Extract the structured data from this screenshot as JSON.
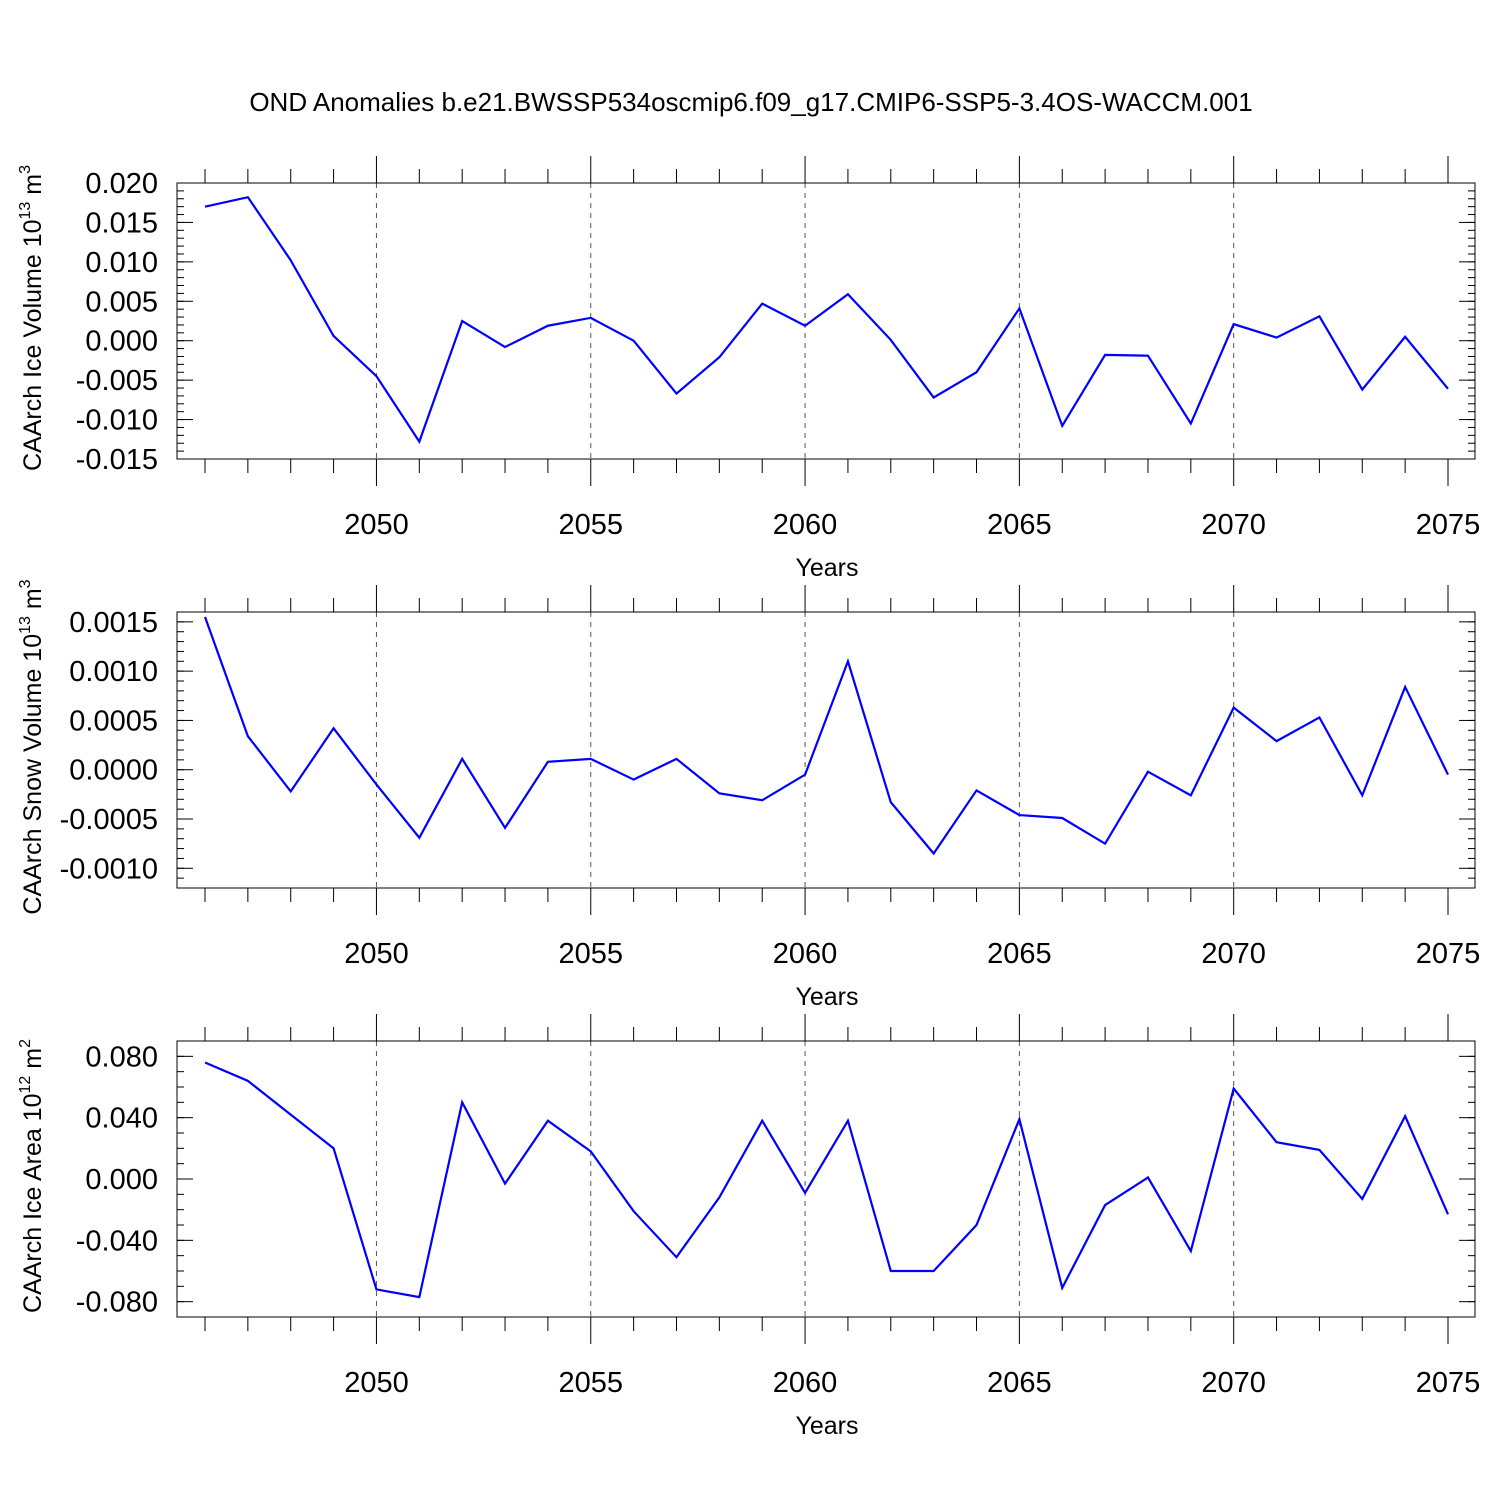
{
  "title": "OND Anomalies b.e21.BWSSP534oscmip6.f09_g17.CMIP6-SSP5-3.4OS-WACCM.001",
  "colors": {
    "line": "#0000ff",
    "axis": "#000000",
    "grid": "#555555"
  },
  "chart_data": [
    {
      "type": "line",
      "ylabel": "CAArch Ice Volume 10",
      "ylabel_exp": "13",
      "ylabel_unit": "m",
      "ylabel_unit_exp": "3",
      "xlabel": "Years",
      "xlim": [
        2046,
        2075
      ],
      "ylim": [
        -0.015,
        0.02
      ],
      "yticks": [
        0.02,
        0.015,
        0.01,
        0.005,
        0.0,
        -0.005,
        -0.01,
        -0.015
      ],
      "ytick_labels": [
        "0.020",
        "0.015",
        "0.010",
        "0.005",
        "0.000",
        "-0.005",
        "-0.010",
        "-0.015"
      ],
      "yminor_step": 0.001,
      "xticks": [
        2050,
        2055,
        2060,
        2065,
        2070,
        2075
      ],
      "xtick_labels": [
        "2050",
        "2055",
        "2060",
        "2065",
        "2070",
        "2075"
      ],
      "x": [
        2046,
        2047,
        2048,
        2049,
        2050,
        2051,
        2052,
        2053,
        2054,
        2055,
        2056,
        2057,
        2058,
        2059,
        2060,
        2061,
        2062,
        2063,
        2064,
        2065,
        2066,
        2067,
        2068,
        2069,
        2070,
        2071,
        2072,
        2073,
        2074,
        2075
      ],
      "series": [
        {
          "name": "CAArch Ice Volume",
          "values": [
            0.017,
            0.0182,
            0.0102,
            0.0006,
            -0.0045,
            -0.0128,
            0.0025,
            -0.0008,
            0.0019,
            0.0029,
            0.0,
            -0.0067,
            -0.0021,
            0.0047,
            0.0019,
            0.0059,
            0.0001,
            -0.0072,
            -0.004,
            0.0041,
            -0.0108,
            -0.0018,
            -0.0019,
            -0.0105,
            0.0021,
            0.0004,
            0.0031,
            -0.0062,
            0.0005,
            -0.0061
          ]
        }
      ]
    },
    {
      "type": "line",
      "ylabel": "CAArch Snow Volume 10",
      "ylabel_exp": "13",
      "ylabel_unit": "m",
      "ylabel_unit_exp": "3",
      "xlabel": "Years",
      "xlim": [
        2046,
        2075
      ],
      "ylim": [
        -0.0012,
        0.0016
      ],
      "yticks": [
        0.0015,
        0.001,
        0.0005,
        0.0,
        -0.0005,
        -0.001
      ],
      "ytick_labels": [
        "0.0015",
        "0.0010",
        "0.0005",
        "0.0000",
        "-0.0005",
        "-0.0010"
      ],
      "yminor_step": 0.0001,
      "xticks": [
        2050,
        2055,
        2060,
        2065,
        2070,
        2075
      ],
      "xtick_labels": [
        "2050",
        "2055",
        "2060",
        "2065",
        "2070",
        "2075"
      ],
      "x": [
        2046,
        2047,
        2048,
        2049,
        2050,
        2051,
        2052,
        2053,
        2054,
        2055,
        2056,
        2057,
        2058,
        2059,
        2060,
        2061,
        2062,
        2063,
        2064,
        2065,
        2066,
        2067,
        2068,
        2069,
        2070,
        2071,
        2072,
        2073,
        2074,
        2075
      ],
      "series": [
        {
          "name": "CAArch Snow Volume",
          "values": [
            0.00155,
            0.00034,
            -0.00022,
            0.00042,
            -0.00015,
            -0.00069,
            0.00011,
            -0.00059,
            8e-05,
            0.00011,
            -0.0001,
            0.00011,
            -0.00024,
            -0.00031,
            -5e-05,
            0.0011,
            -0.00033,
            -0.00085,
            -0.00021,
            -0.00046,
            -0.00049,
            -0.00075,
            -2e-05,
            -0.00026,
            0.00063,
            0.00029,
            0.00053,
            -0.00026,
            0.00084,
            -5e-05
          ]
        }
      ]
    },
    {
      "type": "line",
      "ylabel": "CAArch Ice Area 10",
      "ylabel_exp": "12",
      "ylabel_unit": "m",
      "ylabel_unit_exp": "2",
      "xlabel": "Years",
      "xlim": [
        2046,
        2075
      ],
      "ylim": [
        -0.09,
        0.09
      ],
      "yticks": [
        0.08,
        0.04,
        0.0,
        -0.04,
        -0.08
      ],
      "ytick_labels": [
        "0.080",
        "0.040",
        "0.000",
        "-0.040",
        "-0.080"
      ],
      "yminor_step": 0.01,
      "xticks": [
        2050,
        2055,
        2060,
        2065,
        2070,
        2075
      ],
      "xtick_labels": [
        "2050",
        "2055",
        "2060",
        "2065",
        "2070",
        "2075"
      ],
      "x": [
        2046,
        2047,
        2048,
        2049,
        2050,
        2051,
        2052,
        2053,
        2054,
        2055,
        2056,
        2057,
        2058,
        2059,
        2060,
        2061,
        2062,
        2063,
        2064,
        2065,
        2066,
        2067,
        2068,
        2069,
        2070,
        2071,
        2072,
        2073,
        2074,
        2075
      ],
      "series": [
        {
          "name": "CAArch Ice Area",
          "values": [
            0.076,
            0.064,
            0.042,
            0.02,
            -0.072,
            -0.077,
            0.05,
            -0.003,
            0.038,
            0.018,
            -0.021,
            -0.051,
            -0.012,
            0.038,
            -0.009,
            0.038,
            -0.06,
            -0.06,
            -0.03,
            0.039,
            -0.071,
            -0.017,
            0.001,
            -0.047,
            0.059,
            0.024,
            0.019,
            -0.013,
            0.041,
            -0.023
          ]
        }
      ]
    }
  ]
}
